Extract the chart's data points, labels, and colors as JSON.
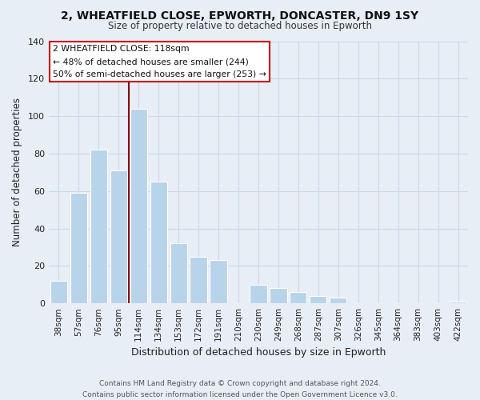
{
  "title": "2, WHEATFIELD CLOSE, EPWORTH, DONCASTER, DN9 1SY",
  "subtitle": "Size of property relative to detached houses in Epworth",
  "xlabel": "Distribution of detached houses by size in Epworth",
  "ylabel": "Number of detached properties",
  "categories": [
    "38sqm",
    "57sqm",
    "76sqm",
    "95sqm",
    "114sqm",
    "134sqm",
    "153sqm",
    "172sqm",
    "191sqm",
    "210sqm",
    "230sqm",
    "249sqm",
    "268sqm",
    "287sqm",
    "307sqm",
    "326sqm",
    "345sqm",
    "364sqm",
    "383sqm",
    "403sqm",
    "422sqm"
  ],
  "values": [
    12,
    59,
    82,
    71,
    104,
    65,
    32,
    25,
    23,
    0,
    10,
    8,
    6,
    4,
    3,
    0,
    0,
    0,
    0,
    0,
    1
  ],
  "bar_color": "#b8d4ea",
  "vline_x": 3.5,
  "vline_color": "#8b0000",
  "ylim": [
    0,
    140
  ],
  "yticks": [
    0,
    20,
    40,
    60,
    80,
    100,
    120,
    140
  ],
  "annotation_title": "2 WHEATFIELD CLOSE: 118sqm",
  "annotation_line1": "← 48% of detached houses are smaller (244)",
  "annotation_line2": "50% of semi-detached houses are larger (253) →",
  "footer_line1": "Contains HM Land Registry data © Crown copyright and database right 2024.",
  "footer_line2": "Contains public sector information licensed under the Open Government Licence v3.0.",
  "background_color": "#e8eef6",
  "plot_background": "#e8eef6",
  "grid_color": "#c8d8e8"
}
